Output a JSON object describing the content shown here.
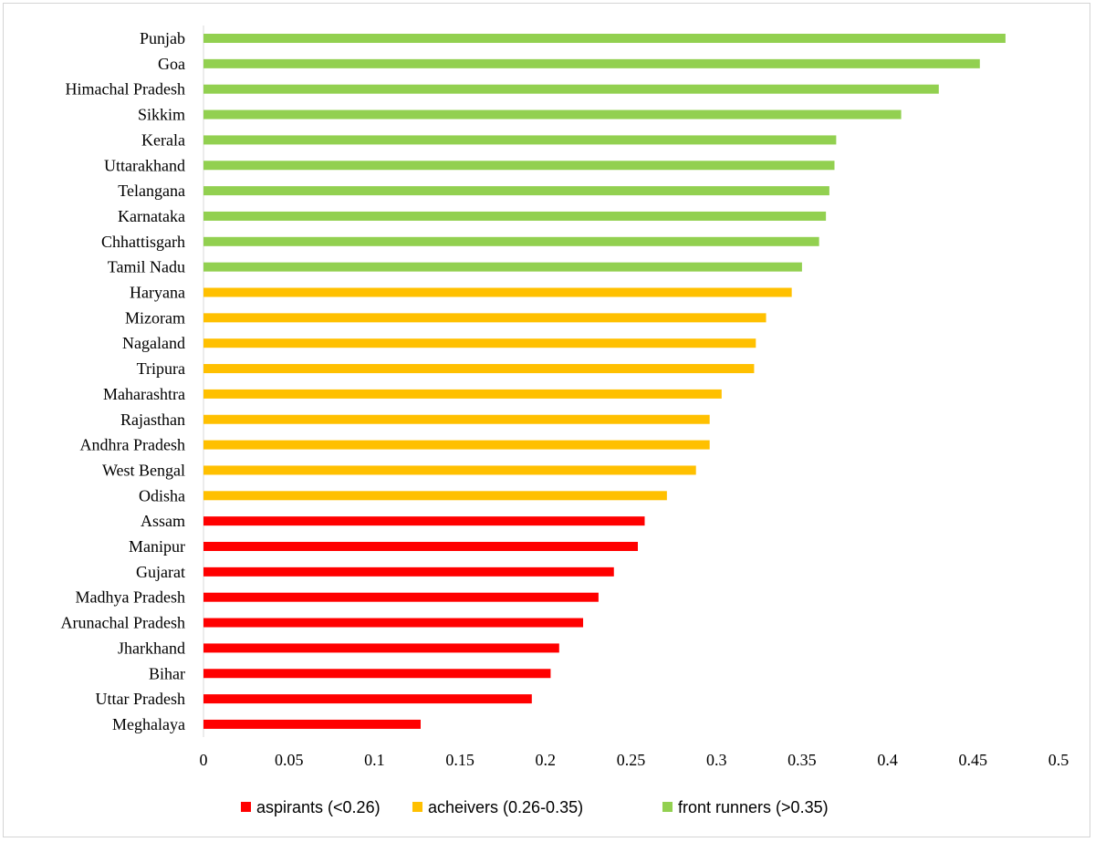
{
  "chart_data": {
    "type": "bar",
    "orientation": "horizontal",
    "title": "",
    "xlabel": "",
    "ylabel": "",
    "xlim": [
      0,
      0.5
    ],
    "x_ticks": [
      "0",
      "0.05",
      "0.1",
      "0.15",
      "0.2",
      "0.25",
      "0.3",
      "0.35",
      "0.4",
      "0.45",
      "0.5"
    ],
    "grid": false,
    "legend_position": "bottom",
    "legend": [
      {
        "name": "aspirants (<0.26)",
        "color": "#ff0000"
      },
      {
        "name": "acheivers (0.26-0.35)",
        "color": "#ffc000"
      },
      {
        "name": "front runners (>0.35)",
        "color": "#92d050"
      }
    ],
    "bars": [
      {
        "category": "Punjab",
        "value": 0.469,
        "group": 2
      },
      {
        "category": "Goa",
        "value": 0.454,
        "group": 2
      },
      {
        "category": "Himachal Pradesh",
        "value": 0.43,
        "group": 2
      },
      {
        "category": "Sikkim",
        "value": 0.408,
        "group": 2
      },
      {
        "category": "Kerala",
        "value": 0.37,
        "group": 2
      },
      {
        "category": "Uttarakhand",
        "value": 0.369,
        "group": 2
      },
      {
        "category": "Telangana",
        "value": 0.366,
        "group": 2
      },
      {
        "category": "Karnataka",
        "value": 0.364,
        "group": 2
      },
      {
        "category": "Chhattisgarh",
        "value": 0.36,
        "group": 2
      },
      {
        "category": "Tamil Nadu",
        "value": 0.35,
        "group": 2
      },
      {
        "category": "Haryana",
        "value": 0.344,
        "group": 1
      },
      {
        "category": "Mizoram",
        "value": 0.329,
        "group": 1
      },
      {
        "category": "Nagaland",
        "value": 0.323,
        "group": 1
      },
      {
        "category": "Tripura",
        "value": 0.322,
        "group": 1
      },
      {
        "category": "Maharashtra",
        "value": 0.303,
        "group": 1
      },
      {
        "category": "Rajasthan",
        "value": 0.296,
        "group": 1
      },
      {
        "category": "Andhra Pradesh",
        "value": 0.296,
        "group": 1
      },
      {
        "category": "West Bengal",
        "value": 0.288,
        "group": 1
      },
      {
        "category": "Odisha",
        "value": 0.271,
        "group": 1
      },
      {
        "category": "Assam",
        "value": 0.258,
        "group": 0
      },
      {
        "category": "Manipur",
        "value": 0.254,
        "group": 0
      },
      {
        "category": "Gujarat",
        "value": 0.24,
        "group": 0
      },
      {
        "category": "Madhya Pradesh",
        "value": 0.231,
        "group": 0
      },
      {
        "category": "Arunachal Pradesh",
        "value": 0.222,
        "group": 0
      },
      {
        "category": "Jharkhand",
        "value": 0.208,
        "group": 0
      },
      {
        "category": "Bihar",
        "value": 0.203,
        "group": 0
      },
      {
        "category": "Uttar Pradesh",
        "value": 0.192,
        "group": 0
      },
      {
        "category": "Meghalaya",
        "value": 0.127,
        "group": 0
      }
    ]
  }
}
